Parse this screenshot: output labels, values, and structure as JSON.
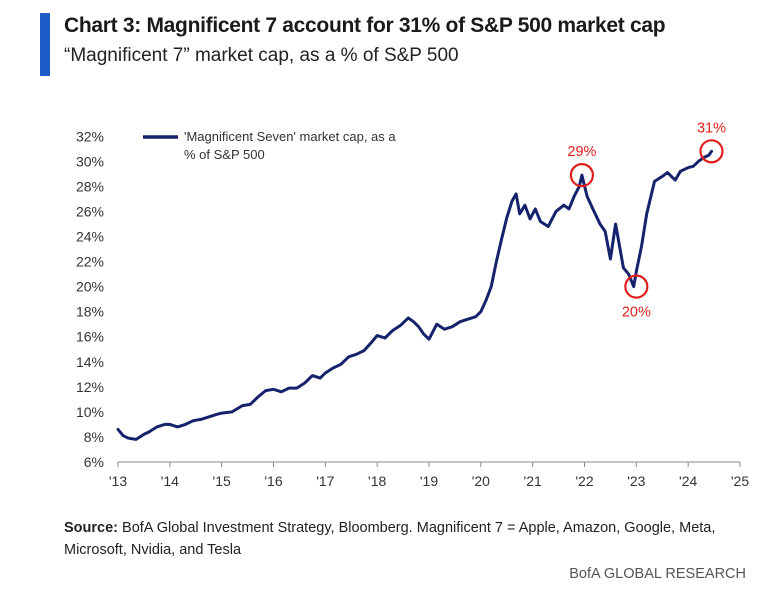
{
  "header": {
    "title": "Chart 3: Magnificent 7 account for 31% of S&P 500 market cap",
    "subtitle": "“Magnificent 7” market cap, as a % of S&P 500"
  },
  "footer": {
    "source_label": "Source:",
    "source_text": " BofA Global Investment Strategy, Bloomberg. Magnificent 7 = Apple, Amazon, Google, Meta, Microsoft, Nvidia, and Tesla",
    "brand": "BofA GLOBAL RESEARCH"
  },
  "colors": {
    "accent": "#1f5cc8",
    "series": "#14236b",
    "annotation": "#e0201b",
    "text": "#1a1a1a"
  },
  "chart_data": {
    "type": "line",
    "grid": false,
    "legend_position": "top-left",
    "y_tick_labels": [
      "6%",
      "8%",
      "10%",
      "12%",
      "14%",
      "16%",
      "18%",
      "20%",
      "22%",
      "24%",
      "26%",
      "28%",
      "30%",
      "32%"
    ],
    "y_ticks": [
      6,
      8,
      10,
      12,
      14,
      16,
      18,
      20,
      22,
      24,
      26,
      28,
      30,
      32
    ],
    "ylim": [
      6,
      32.5
    ],
    "x_tick_labels": [
      "'13",
      "'14",
      "'15",
      "'16",
      "'17",
      "'18",
      "'19",
      "'20",
      "'21",
      "'22",
      "'23",
      "'24",
      "'25"
    ],
    "x_ticks": [
      2013,
      2014,
      2015,
      2016,
      2017,
      2018,
      2019,
      2020,
      2021,
      2022,
      2023,
      2024,
      2025
    ],
    "xlim": [
      2013,
      2025
    ],
    "series": [
      {
        "name": "'Magnificent Seven' market cap, as a % of S&P 500",
        "x": [
          2013.0,
          2013.1,
          2013.2,
          2013.35,
          2013.5,
          2013.6,
          2013.75,
          2013.9,
          2014.0,
          2014.15,
          2014.3,
          2014.45,
          2014.6,
          2014.75,
          2014.9,
          2015.0,
          2015.2,
          2015.4,
          2015.55,
          2015.7,
          2015.85,
          2016.0,
          2016.15,
          2016.3,
          2016.45,
          2016.6,
          2016.75,
          2016.9,
          2017.0,
          2017.15,
          2017.3,
          2017.45,
          2017.6,
          2017.75,
          2017.9,
          2018.0,
          2018.15,
          2018.3,
          2018.45,
          2018.6,
          2018.7,
          2018.8,
          2018.9,
          2019.0,
          2019.15,
          2019.3,
          2019.45,
          2019.6,
          2019.75,
          2019.9,
          2020.0,
          2020.1,
          2020.2,
          2020.3,
          2020.4,
          2020.5,
          2020.6,
          2020.68,
          2020.75,
          2020.85,
          2020.95,
          2021.05,
          2021.15,
          2021.3,
          2021.45,
          2021.6,
          2021.7,
          2021.8,
          2021.9,
          2021.95,
          2022.05,
          2022.15,
          2022.3,
          2022.4,
          2022.5,
          2022.6,
          2022.75,
          2022.85,
          2022.95,
          2023.0,
          2023.1,
          2023.2,
          2023.35,
          2023.5,
          2023.6,
          2023.75,
          2023.85,
          2024.0,
          2024.1,
          2024.2,
          2024.3,
          2024.4,
          2024.45
        ],
        "values": [
          8.6,
          8.1,
          7.9,
          7.8,
          8.2,
          8.4,
          8.8,
          9.0,
          9.0,
          8.8,
          9.0,
          9.3,
          9.4,
          9.6,
          9.8,
          9.9,
          10.0,
          10.5,
          10.6,
          11.2,
          11.7,
          11.8,
          11.6,
          11.9,
          11.9,
          12.3,
          12.9,
          12.7,
          13.1,
          13.5,
          13.8,
          14.4,
          14.6,
          14.9,
          15.6,
          16.1,
          15.9,
          16.5,
          16.9,
          17.5,
          17.2,
          16.8,
          16.2,
          15.8,
          17.0,
          16.6,
          16.8,
          17.2,
          17.4,
          17.6,
          18.0,
          18.9,
          20.0,
          22.0,
          23.8,
          25.5,
          26.8,
          27.4,
          25.8,
          26.5,
          25.4,
          26.2,
          25.2,
          24.8,
          26.0,
          26.5,
          26.2,
          27.2,
          28.0,
          28.9,
          27.2,
          26.3,
          25.0,
          24.4,
          22.2,
          25.0,
          21.5,
          21.0,
          20.0,
          21.2,
          23.2,
          25.8,
          28.4,
          28.8,
          29.1,
          28.5,
          29.2,
          29.5,
          29.6,
          30.0,
          30.3,
          30.5,
          30.8
        ]
      }
    ],
    "annotations": [
      {
        "label": "29%",
        "x": 2021.95,
        "y": 28.9,
        "label_position": "above"
      },
      {
        "label": "20%",
        "x": 2023.0,
        "y": 20.0,
        "label_position": "below"
      },
      {
        "label": "31%",
        "x": 2024.45,
        "y": 30.8,
        "label_position": "above"
      }
    ]
  }
}
